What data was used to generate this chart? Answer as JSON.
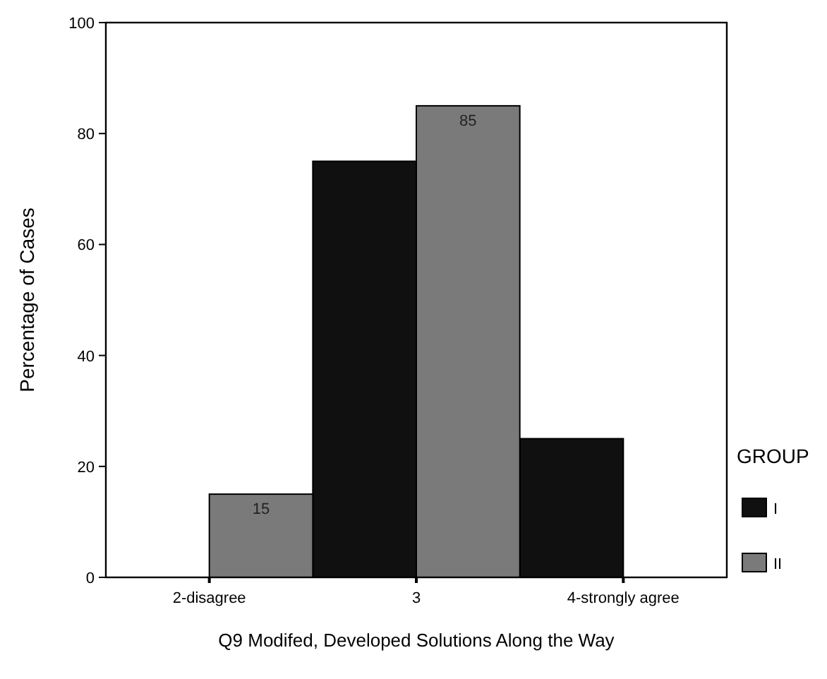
{
  "chart_data": {
    "type": "bar",
    "xlabel": "Q9  Modifed, Developed Solutions Along the Way",
    "ylabel": "Percentage of Cases",
    "legend_title": "GROUP",
    "legend": "right",
    "categories": [
      "2-disagree",
      "3",
      "4-strongly agree"
    ],
    "ylim": [
      0,
      100
    ],
    "yticks": [
      0,
      20,
      40,
      60,
      80,
      100
    ],
    "series": [
      {
        "name": "I",
        "color": "#101010",
        "values": [
          null,
          75,
          25
        ]
      },
      {
        "name": "II",
        "color": "#7a7a7a",
        "values": [
          15,
          85,
          null
        ],
        "value_labels": [
          "15",
          "85",
          null
        ]
      }
    ]
  }
}
